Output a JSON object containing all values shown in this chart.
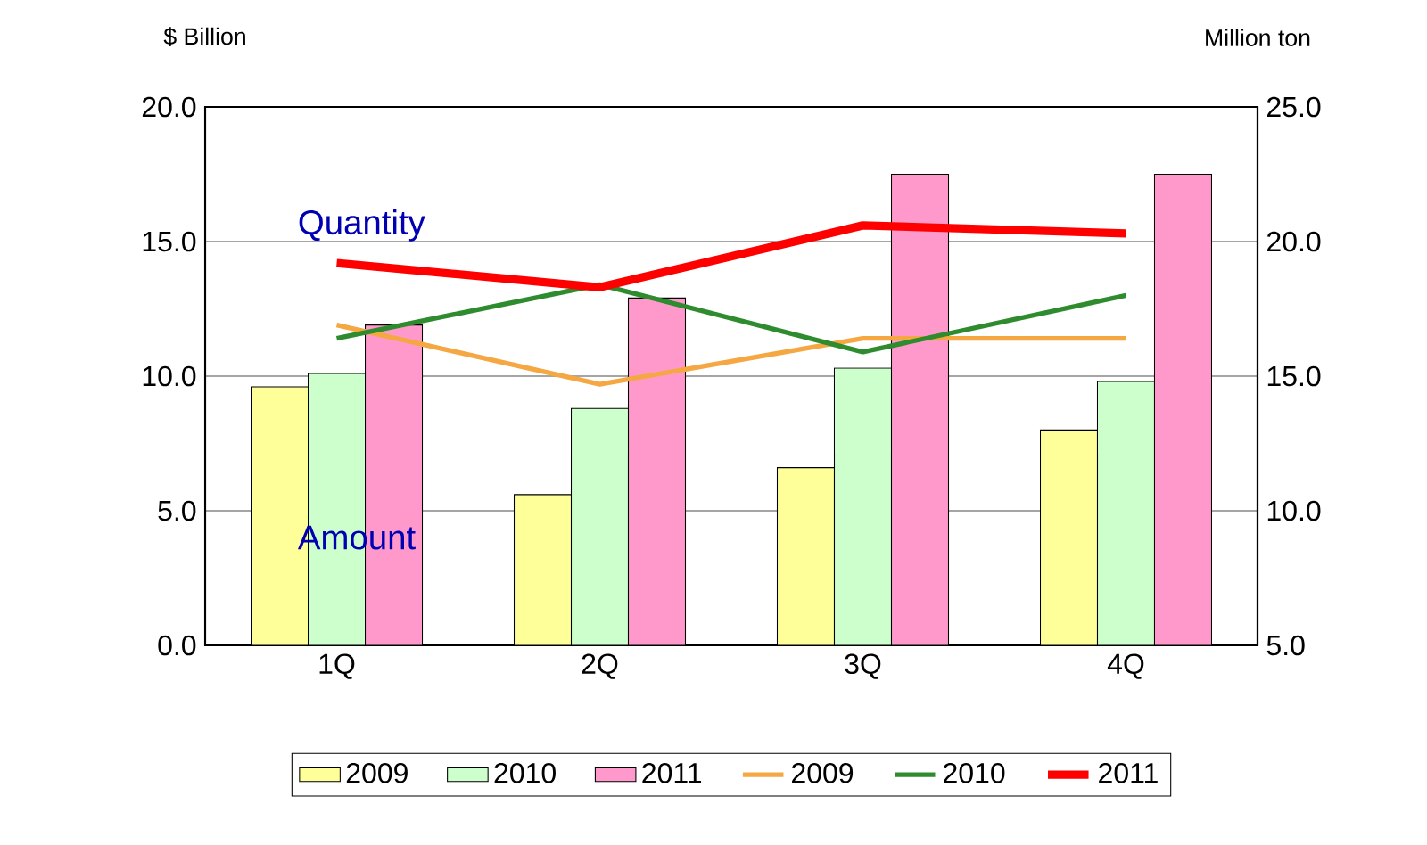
{
  "chart_data": {
    "type": "bar",
    "ylabel": "$ Billion",
    "y2label": "Million ton",
    "categories": [
      "1Q",
      "2Q",
      "3Q",
      "4Q"
    ],
    "series": [
      {
        "name": "2009",
        "color": "#ffff99",
        "values": [
          9.6,
          5.6,
          6.6,
          8.0
        ]
      },
      {
        "name": "2010",
        "color": "#ccffcc",
        "values": [
          10.1,
          8.8,
          10.3,
          9.8
        ]
      },
      {
        "name": "2011",
        "color": "#ff99cc",
        "values": [
          11.9,
          12.9,
          17.5,
          17.5
        ]
      },
      {
        "name": "2009",
        "type": "line",
        "axis": "y2",
        "color": "#f5a742",
        "values": [
          16.9,
          14.7,
          16.4,
          16.4
        ]
      },
      {
        "name": "2010",
        "type": "line",
        "axis": "y2",
        "color": "#2e8b2e",
        "values": [
          16.4,
          18.4,
          15.9,
          18.0
        ]
      },
      {
        "name": "2011",
        "type": "line",
        "axis": "y2",
        "color": "#ff0000",
        "values": [
          19.2,
          18.3,
          20.6,
          20.3
        ]
      }
    ],
    "ylim": [
      0,
      20
    ],
    "yticks": [
      {
        "value": 0,
        "label": "0.0"
      },
      {
        "value": 5,
        "label": "5.0"
      },
      {
        "value": 10,
        "label": "10.0"
      },
      {
        "value": 15,
        "label": "15.0"
      },
      {
        "value": 20,
        "label": "20.0"
      }
    ],
    "y2lim": [
      5,
      25
    ],
    "y2ticks": [
      {
        "value": 5,
        "label": "5.0"
      },
      {
        "value": 10,
        "label": "10.0"
      },
      {
        "value": 15,
        "label": "15.0"
      },
      {
        "value": 20,
        "label": "20.0"
      },
      {
        "value": 25,
        "label": "25.0"
      }
    ],
    "annotations": [
      "Quantity",
      "Amount"
    ],
    "grid": "y",
    "legend": "bottom"
  }
}
